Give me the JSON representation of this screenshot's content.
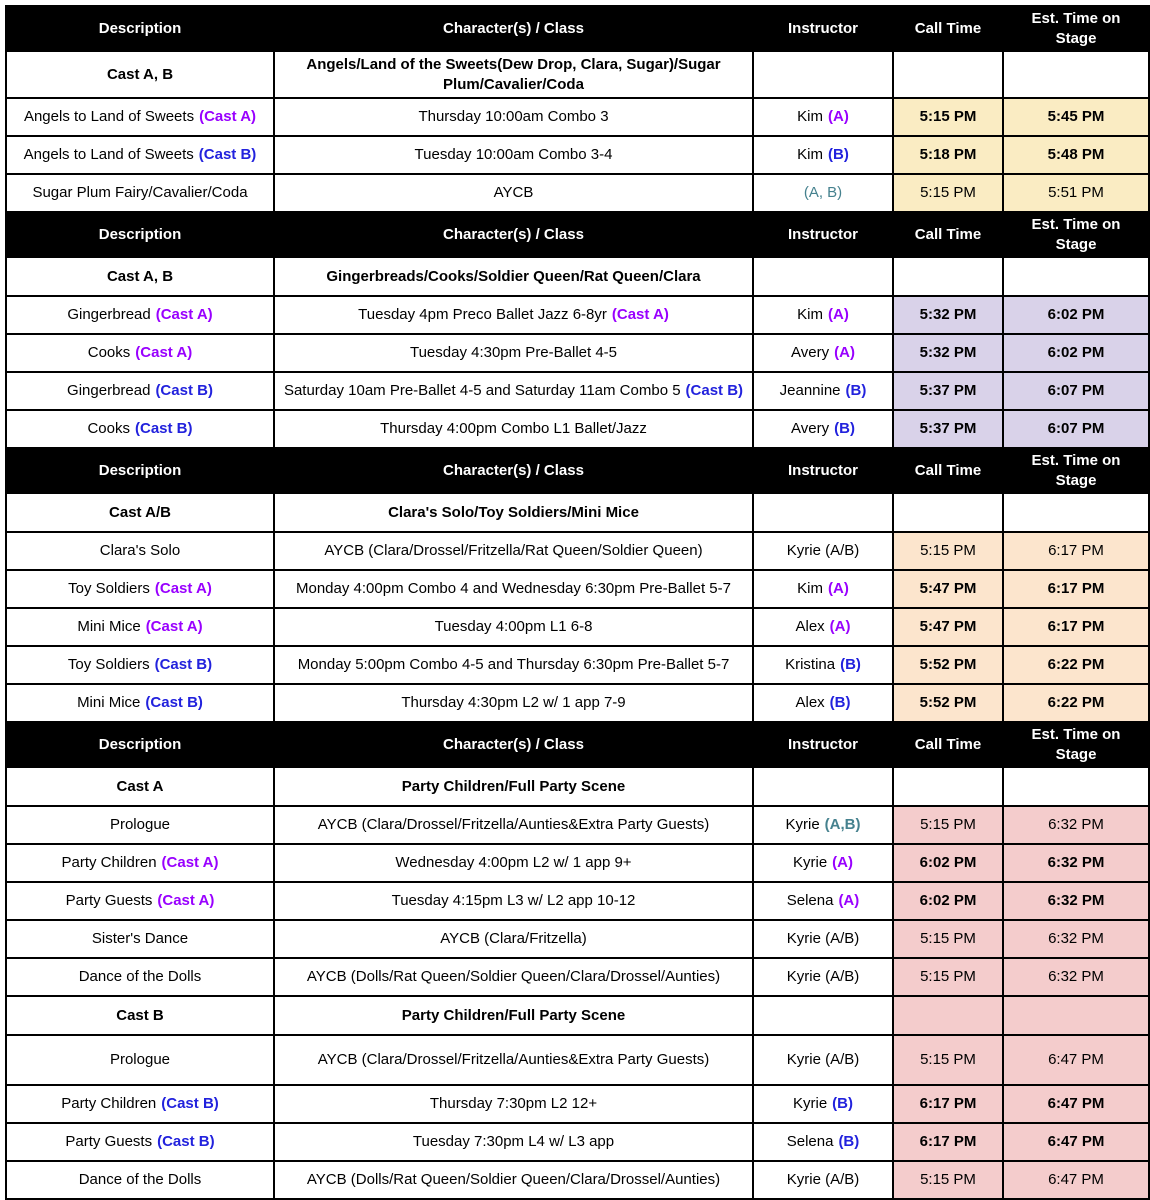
{
  "colors": {
    "purple": "#9900ff",
    "blue": "#2222dd",
    "teal": "#45818e",
    "shade_yellow": "#faecc3",
    "shade_lavender": "#d9d2e9",
    "shade_peach": "#fce5cd",
    "shade_pink": "#f4cccc"
  },
  "columns": [
    "Description",
    "Character(s) / Class",
    "Instructor",
    "Call Time",
    "Est. Time on Stage"
  ],
  "sections": [
    {
      "shade": "#faecc3",
      "rows": [
        {
          "type": "cast",
          "d": "Cast A, B",
          "c": "Angels/Land of the Sweets(Dew Drop, Clara, Sugar)/Sugar Plum/Cavalier/Coda",
          "shaded": false
        },
        {
          "type": "item",
          "d": {
            "text": "Angels to Land of Sweets",
            "tag": "(Cast A)",
            "tagc": "purple"
          },
          "c": {
            "text": "Thursday 10:00am Combo 3"
          },
          "i": {
            "name": "Kim",
            "tag": "(A)",
            "tagc": "purple"
          },
          "call": "5:15 PM",
          "est": "5:45 PM",
          "boldTimes": true
        },
        {
          "type": "item",
          "d": {
            "text": "Angels to Land of Sweets",
            "tag": "(Cast B)",
            "tagc": "blue"
          },
          "c": {
            "text": "Tuesday 10:00am Combo 3-4"
          },
          "i": {
            "name": "Kim",
            "tag": "(B)",
            "tagc": "blue"
          },
          "call": "5:18 PM",
          "est": "5:48 PM",
          "boldTimes": true
        },
        {
          "type": "item",
          "d": {
            "text": "Sugar Plum Fairy/Cavalier/Coda"
          },
          "c": {
            "text": "AYCB"
          },
          "i": {
            "name": "",
            "tag": "(A, B)",
            "tagc": "teal",
            "tagBold": false
          },
          "call": "5:15 PM",
          "est": "5:51 PM",
          "boldTimes": false
        }
      ]
    },
    {
      "shade": "#d9d2e9",
      "rows": [
        {
          "type": "cast",
          "d": "Cast A, B",
          "c": "Gingerbreads/Cooks/Soldier Queen/Rat Queen/Clara",
          "shaded": false
        },
        {
          "type": "item",
          "d": {
            "text": "Gingerbread",
            "tag": "(Cast A)",
            "tagc": "purple"
          },
          "c": {
            "text": "Tuesday 4pm Preco Ballet Jazz 6-8yr",
            "tag": "(Cast A)",
            "tagc": "purple"
          },
          "i": {
            "name": "Kim",
            "tag": "(A)",
            "tagc": "purple"
          },
          "call": "5:32 PM",
          "est": "6:02 PM",
          "boldTimes": true
        },
        {
          "type": "item",
          "d": {
            "text": "Cooks",
            "tag": "(Cast A)",
            "tagc": "purple"
          },
          "c": {
            "text": "Tuesday 4:30pm Pre-Ballet 4-5"
          },
          "i": {
            "name": "Avery",
            "tag": "(A)",
            "tagc": "purple"
          },
          "call": "5:32 PM",
          "est": "6:02 PM",
          "boldTimes": true
        },
        {
          "type": "item",
          "d": {
            "text": "Gingerbread",
            "tag": "(Cast B)",
            "tagc": "blue"
          },
          "c": {
            "text": "Saturday 10am Pre-Ballet 4-5 and Saturday 11am Combo 5",
            "tag": "(Cast B)",
            "tagc": "blue"
          },
          "i": {
            "name": "Jeannine",
            "tag": "(B)",
            "tagc": "blue"
          },
          "call": "5:37 PM",
          "est": "6:07 PM",
          "boldTimes": true
        },
        {
          "type": "item",
          "d": {
            "text": "Cooks",
            "tag": "(Cast B)",
            "tagc": "blue"
          },
          "c": {
            "text": "Thursday 4:00pm Combo L1 Ballet/Jazz"
          },
          "i": {
            "name": "Avery",
            "tag": "(B)",
            "tagc": "blue"
          },
          "call": "5:37 PM",
          "est": "6:07 PM",
          "boldTimes": true
        }
      ]
    },
    {
      "shade": "#fce5cd",
      "rows": [
        {
          "type": "cast",
          "d": "Cast A/B",
          "c": "Clara's Solo/Toy Soldiers/Mini Mice",
          "shaded": false
        },
        {
          "type": "item",
          "d": {
            "text": "Clara's Solo"
          },
          "c": {
            "text": "AYCB (Clara/Drossel/Fritzella/Rat Queen/Soldier Queen)"
          },
          "i": {
            "name": "Kyrie (A/B)"
          },
          "call": "5:15 PM",
          "est": "6:17 PM",
          "boldTimes": false
        },
        {
          "type": "item",
          "d": {
            "text": "Toy Soldiers",
            "tag": "(Cast A)",
            "tagc": "purple"
          },
          "c": {
            "text": "Monday 4:00pm Combo 4 and Wednesday 6:30pm Pre-Ballet 5-7"
          },
          "i": {
            "name": "Kim",
            "tag": "(A)",
            "tagc": "purple"
          },
          "call": "5:47 PM",
          "est": "6:17 PM",
          "boldTimes": true
        },
        {
          "type": "item",
          "d": {
            "text": "Mini Mice",
            "tag": "(Cast A)",
            "tagc": "purple"
          },
          "c": {
            "text": "Tuesday 4:00pm L1 6-8"
          },
          "i": {
            "name": "Alex",
            "tag": "(A)",
            "tagc": "purple"
          },
          "call": "5:47 PM",
          "est": "6:17 PM",
          "boldTimes": true
        },
        {
          "type": "item",
          "d": {
            "text": "Toy Soldiers",
            "tag": "(Cast B)",
            "tagc": "blue"
          },
          "c": {
            "text": "Monday 5:00pm Combo 4-5 and Thursday 6:30pm Pre-Ballet 5-7"
          },
          "i": {
            "name": "Kristina",
            "tag": "(B)",
            "tagc": "blue"
          },
          "call": "5:52 PM",
          "est": "6:22 PM",
          "boldTimes": true
        },
        {
          "type": "item",
          "d": {
            "text": "Mini Mice",
            "tag": "(Cast B)",
            "tagc": "blue"
          },
          "c": {
            "text": "Thursday 4:30pm L2 w/ 1 app 7-9"
          },
          "i": {
            "name": "Alex",
            "tag": "(B)",
            "tagc": "blue"
          },
          "call": "5:52 PM",
          "est": "6:22 PM",
          "boldTimes": true
        }
      ]
    },
    {
      "shade": "#f4cccc",
      "rows": [
        {
          "type": "cast",
          "d": "Cast A",
          "c": "Party Children/Full Party Scene",
          "shaded": false
        },
        {
          "type": "item",
          "d": {
            "text": "Prologue"
          },
          "c": {
            "text": "AYCB (Clara/Drossel/Fritzella/Aunties&Extra Party Guests)"
          },
          "i": {
            "name": "Kyrie",
            "tag": "(A,B)",
            "tagc": "teal"
          },
          "call": "5:15 PM",
          "est": "6:32 PM",
          "boldTimes": false
        },
        {
          "type": "item",
          "d": {
            "text": "Party Children",
            "tag": "(Cast A)",
            "tagc": "purple"
          },
          "c": {
            "text": "Wednesday 4:00pm L2 w/ 1 app 9+"
          },
          "i": {
            "name": "Kyrie",
            "tag": "(A)",
            "tagc": "purple"
          },
          "call": "6:02 PM",
          "est": "6:32 PM",
          "boldTimes": true
        },
        {
          "type": "item",
          "d": {
            "text": "Party Guests",
            "tag": "(Cast A)",
            "tagc": "purple"
          },
          "c": {
            "text": "Tuesday 4:15pm L3 w/ L2 app 10-12"
          },
          "i": {
            "name": "Selena",
            "tag": "(A)",
            "tagc": "purple"
          },
          "call": "6:02 PM",
          "est": "6:32 PM",
          "boldTimes": true
        },
        {
          "type": "item",
          "d": {
            "text": "Sister's Dance"
          },
          "c": {
            "text": "AYCB (Clara/Fritzella)"
          },
          "i": {
            "name": "Kyrie (A/B)"
          },
          "call": "5:15 PM",
          "est": "6:32 PM",
          "boldTimes": false
        },
        {
          "type": "item",
          "d": {
            "text": "Dance of the Dolls"
          },
          "c": {
            "text": "AYCB (Dolls/Rat Queen/Soldier Queen/Clara/Drossel/Aunties)"
          },
          "i": {
            "name": "Kyrie (A/B)"
          },
          "call": "5:15 PM",
          "est": "6:32 PM",
          "boldTimes": false
        },
        {
          "type": "cast",
          "d": "Cast B",
          "c": "Party Children/Full Party Scene",
          "shaded": true
        },
        {
          "type": "item",
          "tall": true,
          "d": {
            "text": "Prologue"
          },
          "c": {
            "text": "AYCB (Clara/Drossel/Fritzella/Aunties&Extra Party Guests)"
          },
          "i": {
            "name": "Kyrie (A/B)"
          },
          "call": "5:15 PM",
          "est": "6:47 PM",
          "boldTimes": false
        },
        {
          "type": "item",
          "d": {
            "text": "Party Children",
            "tag": "(Cast B)",
            "tagc": "blue"
          },
          "c": {
            "text": "Thursday 7:30pm L2 12+"
          },
          "i": {
            "name": "Kyrie",
            "tag": "(B)",
            "tagc": "blue"
          },
          "call": "6:17 PM",
          "est": "6:47 PM",
          "boldTimes": true
        },
        {
          "type": "item",
          "d": {
            "text": "Party Guests",
            "tag": "(Cast B)",
            "tagc": "blue"
          },
          "c": {
            "text": "Tuesday 7:30pm L4 w/ L3 app"
          },
          "i": {
            "name": "Selena",
            "tag": "(B)",
            "tagc": "blue"
          },
          "call": "6:17 PM",
          "est": "6:47 PM",
          "boldTimes": true
        },
        {
          "type": "item",
          "d": {
            "text": "Dance of the Dolls"
          },
          "c": {
            "text": "AYCB (Dolls/Rat Queen/Soldier Queen/Clara/Drossel/Aunties)"
          },
          "i": {
            "name": "Kyrie (A/B)"
          },
          "call": "5:15 PM",
          "est": "6:47 PM",
          "boldTimes": false
        }
      ]
    }
  ]
}
